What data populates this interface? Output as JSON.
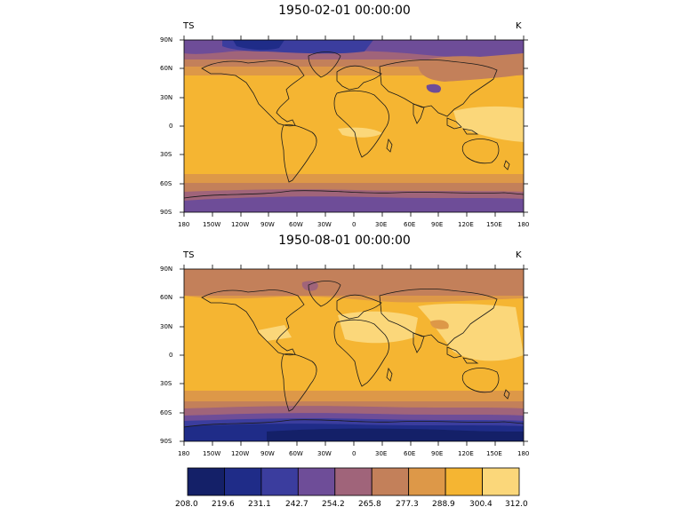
{
  "maps": [
    {
      "title": "1950-02-01 00:00:00",
      "left_label": "TS",
      "right_label": "K"
    },
    {
      "title": "1950-08-01 00:00:00",
      "left_label": "TS",
      "right_label": "K"
    }
  ],
  "lat_ticks": [
    "90N",
    "60N",
    "30N",
    "0",
    "30S",
    "60S",
    "90S"
  ],
  "lon_ticks": [
    "180",
    "150W",
    "120W",
    "90W",
    "60W",
    "30W",
    "0",
    "30E",
    "60E",
    "90E",
    "120E",
    "150E",
    "180"
  ],
  "colorbar": {
    "labels": [
      "208.0",
      "219.6",
      "231.1",
      "242.7",
      "254.2",
      "265.8",
      "277.3",
      "288.9",
      "300.4",
      "312.0"
    ],
    "colors": [
      "#142068",
      "#1f2c88",
      "#3b3d9e",
      "#6e4d98",
      "#a0647a",
      "#c3805a",
      "#dd9848",
      "#f5b532",
      "#fbd77a"
    ]
  }
}
